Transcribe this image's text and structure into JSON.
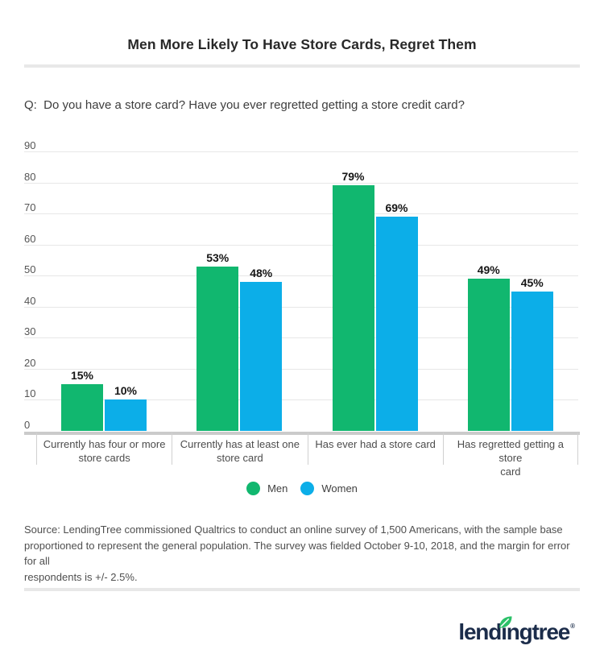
{
  "page": {
    "question": "Q:  Do you have a store card? Have you ever regretted getting a store credit card?"
  },
  "chart_data": {
    "type": "bar",
    "title": "Men More Likely To Have Store Cards, Regret Them",
    "categories": [
      "Currently has four or more\nstore cards",
      "Currently has at least one\nstore card",
      "Has ever had a store card",
      "Has regretted getting a store\ncard"
    ],
    "series": [
      {
        "name": "Men",
        "color": "#11b76f",
        "values": [
          15,
          53,
          79,
          49
        ]
      },
      {
        "name": "Women",
        "color": "#0caee8",
        "values": [
          10,
          48,
          69,
          45
        ]
      }
    ],
    "xlabel": "",
    "ylabel": "",
    "ylim": [
      0,
      90
    ],
    "ytick_step": 10,
    "value_suffix": "%",
    "grid": true,
    "legend_position": "bottom"
  },
  "source": {
    "lines": [
      "Source: LendingTree commissioned Qualtrics to conduct an online survey of 1,500 Americans, with the sample base",
      "proportioned to represent the general population. The survey was fielded October 9-10, 2018, and the margin for error for all",
      "respondents is +/- 2.5%."
    ]
  },
  "logo": {
    "text": "lendingtree",
    "registered": "®",
    "brand_navy": "#1b2c4a",
    "leaf_green": "#2bc168"
  }
}
